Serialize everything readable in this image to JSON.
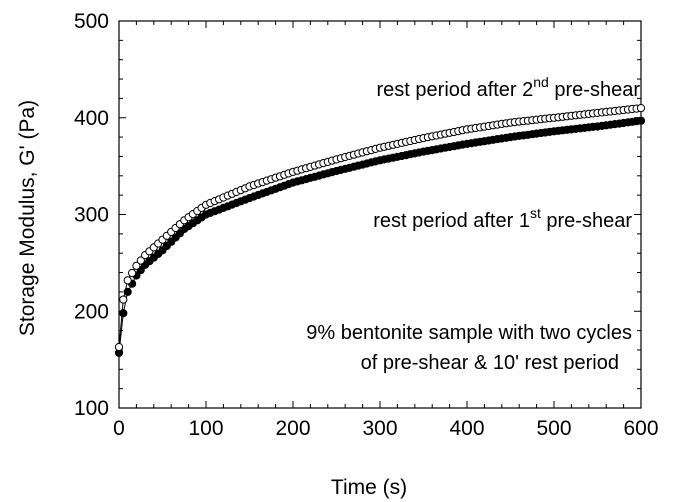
{
  "chart_data": {
    "type": "scatter",
    "xlabel": "Time (s)",
    "ylabel": "Storage Modulus, G' (Pa)",
    "xlim": [
      0,
      600
    ],
    "ylim": [
      100,
      500
    ],
    "xticks": [
      0,
      100,
      200,
      300,
      400,
      500,
      600
    ],
    "yticks": [
      100,
      200,
      300,
      400,
      500
    ],
    "xtick_labels": [
      "0",
      "100",
      "200",
      "300",
      "400",
      "500",
      "600"
    ],
    "ytick_labels": [
      "100",
      "200",
      "300",
      "400",
      "500"
    ],
    "grid": false,
    "annotations": {
      "second": {
        "pre": "rest period after 2",
        "sup": "nd",
        "post": " pre-shear"
      },
      "first": {
        "pre": "rest period after 1",
        "sup": "st",
        "post": " pre-shear"
      },
      "sample_line1": "9% bentonite sample with two cycles",
      "sample_line2": "of pre-shear & 10' rest period"
    },
    "series": [
      {
        "marker": "open-circle",
        "color": "#000000",
        "x": [
          0,
          5,
          10,
          20,
          30,
          50,
          75,
          100,
          150,
          200,
          250,
          300,
          350,
          400,
          450,
          500,
          550,
          600
        ],
        "y": [
          163,
          212,
          232,
          247,
          258,
          274,
          294,
          310,
          329,
          344,
          357,
          369,
          379,
          388,
          395,
          400,
          405,
          410
        ]
      },
      {
        "marker": "filled-circle",
        "color": "#000000",
        "x": [
          0,
          5,
          10,
          20,
          30,
          50,
          75,
          100,
          150,
          200,
          250,
          300,
          350,
          400,
          450,
          500,
          550,
          600
        ],
        "y": [
          157,
          198,
          220,
          237,
          248,
          263,
          285,
          300,
          317,
          333,
          345,
          356,
          365,
          373,
          380,
          386,
          391,
          397
        ]
      }
    ]
  }
}
